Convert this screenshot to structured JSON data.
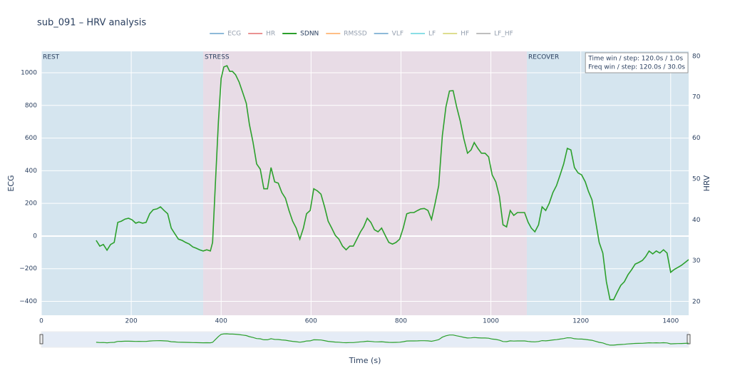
{
  "chart_data": {
    "type": "line",
    "title": "sub_091 – HRV analysis",
    "x_label": "Time (s)",
    "y_label": "ECG",
    "y2_label": "HRV",
    "xlim": [
      0,
      1440
    ],
    "xticks": [
      0,
      200,
      400,
      600,
      800,
      1000,
      1200,
      1400
    ],
    "ylim": [
      -485,
      1131
    ],
    "yticks": [
      {
        "value": -400,
        "label": "−400"
      },
      {
        "value": -200,
        "label": "−200"
      },
      0,
      200,
      400,
      600,
      800,
      1000
    ],
    "y2lim": [
      16.7,
      81.2
    ],
    "y2ticks": [
      20,
      30,
      40,
      50,
      60,
      70,
      80
    ],
    "grid": true,
    "range_slider": true,
    "annotation": [
      "Time win / step: 120.0s / 1.0s",
      "Freq win / step: 120.0s / 30.0s"
    ],
    "regions": [
      {
        "label": "REST",
        "start": 0,
        "end": 360,
        "color": "#d5e5ef"
      },
      {
        "label": "STRESS",
        "start": 360,
        "end": 1080,
        "color": "#e8dce6"
      },
      {
        "label": "RECOVER",
        "start": 1080,
        "end": 1440,
        "color": "#d5e5ef"
      }
    ],
    "hidden_series": [
      {
        "name": "ECG",
        "color": "#1f77b4"
      },
      {
        "name": "HR",
        "color": "#d62728"
      },
      {
        "name": "RMSSD",
        "color": "#ff7f0e"
      },
      {
        "name": "VLF",
        "color": "#1f77b4"
      },
      {
        "name": "LF",
        "color": "#17becf"
      },
      {
        "name": "HF",
        "color": "#bcbd22"
      },
      {
        "name": "LF_HF",
        "color": "#7f7f7f"
      }
    ],
    "legend_order": [
      "ECG",
      "HR",
      "SDNN",
      "RMSSD",
      "VLF",
      "LF",
      "HF",
      "LF_HF"
    ],
    "x": [
      122,
      130,
      138,
      146,
      154,
      162,
      170,
      178,
      186,
      194,
      202,
      210,
      217,
      225,
      233,
      241,
      249,
      257,
      265,
      273,
      281,
      289,
      297,
      305,
      313,
      321,
      329,
      337,
      344,
      352,
      360,
      368,
      376,
      381,
      387,
      394,
      400,
      406,
      413,
      419,
      425,
      432,
      440,
      448,
      456,
      463,
      471,
      479,
      487,
      495,
      503,
      511,
      519,
      527,
      535,
      543,
      551,
      559,
      567,
      575,
      583,
      590,
      598,
      606,
      614,
      622,
      630,
      638,
      646,
      654,
      662,
      670,
      678,
      686,
      694,
      702,
      710,
      717,
      725,
      733,
      741,
      749,
      757,
      765,
      773,
      781,
      789,
      797,
      805,
      813,
      821,
      829,
      837,
      844,
      852,
      860,
      868,
      876,
      884,
      892,
      900,
      908,
      916,
      924,
      932,
      940,
      948,
      956,
      963,
      971,
      979,
      987,
      995,
      1003,
      1011,
      1019,
      1027,
      1035,
      1043,
      1051,
      1059,
      1067,
      1075,
      1083,
      1090,
      1098,
      1106,
      1114,
      1122,
      1130,
      1138,
      1146,
      1154,
      1162,
      1170,
      1178,
      1186,
      1194,
      1202,
      1210,
      1217,
      1225,
      1233,
      1241,
      1249,
      1257,
      1265,
      1273,
      1281,
      1289,
      1297,
      1305,
      1313,
      1321,
      1329,
      1337,
      1344,
      1352,
      1360,
      1368,
      1376,
      1384,
      1392,
      1400,
      1408,
      1416,
      1424,
      1432,
      1440
    ],
    "series": [
      {
        "name": "SDNN",
        "color": "#2ca02c",
        "axis": "y2",
        "values": [
          35.0,
          33.6,
          34.0,
          32.6,
          34.0,
          34.5,
          39.4,
          39.7,
          40.2,
          40.4,
          40.0,
          39.2,
          39.5,
          39.2,
          39.4,
          41.5,
          42.5,
          42.7,
          43.2,
          42.3,
          41.5,
          38.0,
          36.6,
          35.3,
          35.0,
          34.5,
          34.1,
          33.4,
          33.1,
          32.7,
          32.4,
          32.7,
          32.4,
          34.5,
          48.4,
          64.1,
          74.6,
          77.4,
          77.7,
          76.3,
          76.3,
          75.5,
          73.7,
          71.1,
          68.5,
          63.3,
          58.9,
          53.7,
          52.4,
          47.6,
          47.6,
          52.8,
          49.3,
          49.0,
          46.7,
          45.3,
          42.3,
          39.7,
          38.0,
          35.3,
          38.0,
          41.5,
          42.3,
          47.6,
          47.1,
          46.3,
          43.2,
          39.7,
          38.0,
          36.2,
          35.3,
          33.6,
          32.7,
          33.6,
          33.6,
          35.3,
          37.1,
          38.3,
          40.4,
          39.4,
          37.6,
          37.1,
          38.0,
          36.2,
          34.5,
          34.1,
          34.5,
          35.3,
          38.0,
          41.5,
          41.8,
          41.8,
          42.3,
          42.7,
          42.8,
          42.3,
          40.1,
          44.1,
          48.4,
          60.6,
          67.6,
          71.5,
          71.6,
          67.6,
          64.1,
          59.8,
          56.3,
          57.1,
          58.9,
          57.5,
          56.3,
          56.3,
          55.4,
          51.0,
          49.3,
          45.8,
          38.8,
          38.3,
          42.3,
          41.1,
          41.8,
          41.8,
          41.8,
          39.4,
          38.0,
          37.1,
          38.8,
          43.2,
          42.3,
          44.1,
          46.7,
          48.4,
          51.0,
          53.7,
          57.5,
          57.1,
          52.8,
          51.5,
          51.0,
          49.3,
          47.0,
          44.9,
          39.7,
          34.5,
          31.9,
          24.9,
          20.5,
          20.5,
          22.3,
          24.0,
          24.9,
          26.6,
          27.8,
          29.2,
          29.6,
          30.1,
          31.0,
          32.4,
          31.7,
          32.4,
          31.9,
          32.7,
          31.9,
          27.2,
          27.9,
          28.4,
          28.9,
          29.6,
          30.3
        ]
      }
    ]
  }
}
